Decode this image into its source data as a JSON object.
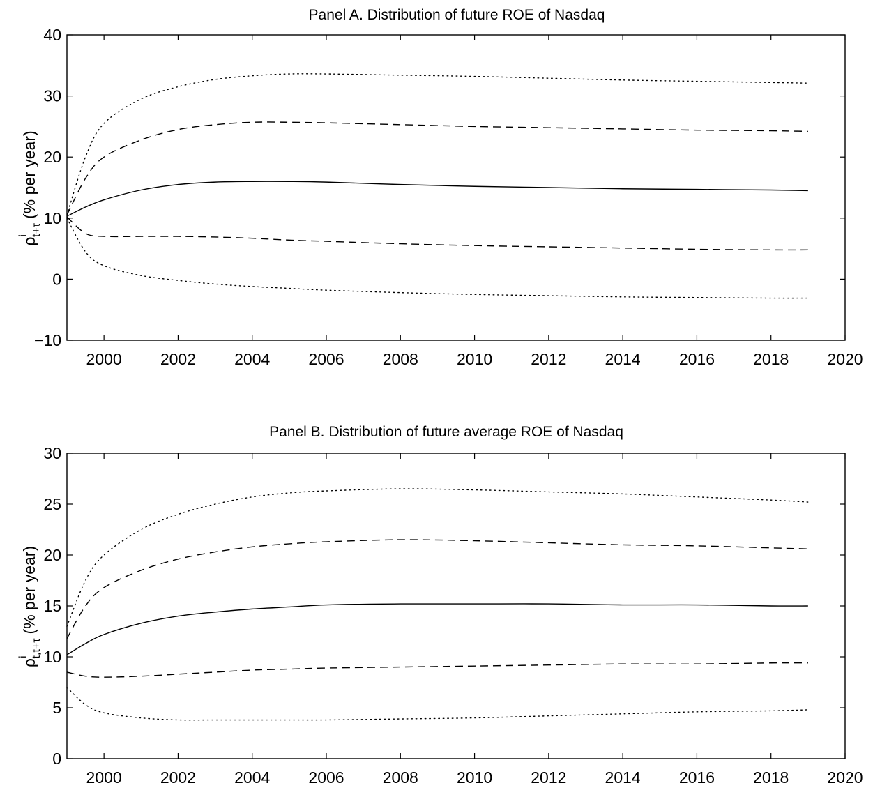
{
  "chart_data": [
    {
      "type": "line",
      "title": "Panel A. Distribution of future ROE of Nasdaq",
      "ylabel": {
        "symbol": "ρ",
        "sup": "i",
        "sub": "t+τ",
        "unit": "(% per year)"
      },
      "xlim": [
        1999,
        2020
      ],
      "ylim": [
        -10,
        40
      ],
      "xticks": [
        2000,
        2002,
        2004,
        2006,
        2008,
        2010,
        2012,
        2014,
        2016,
        2018,
        2020
      ],
      "yticks": [
        -10,
        0,
        10,
        20,
        30,
        40
      ],
      "x": [
        1999,
        1999.5,
        2000,
        2001,
        2002,
        2003,
        2004,
        2005,
        2006,
        2008,
        2010,
        2012,
        2014,
        2016,
        2018,
        2019
      ],
      "series": [
        {
          "style": "dotted",
          "values": [
            10.5,
            20.0,
            25.5,
            29.5,
            31.5,
            32.7,
            33.3,
            33.6,
            33.6,
            33.4,
            33.2,
            32.9,
            32.6,
            32.4,
            32.2,
            32.1
          ]
        },
        {
          "style": "dashed",
          "values": [
            10.5,
            16.5,
            20.0,
            22.8,
            24.5,
            25.3,
            25.7,
            25.7,
            25.6,
            25.3,
            25.0,
            24.8,
            24.6,
            24.4,
            24.3,
            24.2
          ]
        },
        {
          "style": "solid",
          "values": [
            10.3,
            11.8,
            13.0,
            14.6,
            15.5,
            15.9,
            16.0,
            16.0,
            15.9,
            15.5,
            15.2,
            15.0,
            14.8,
            14.7,
            14.6,
            14.5
          ]
        },
        {
          "style": "dashed",
          "values": [
            10.2,
            7.5,
            7.0,
            7.0,
            7.0,
            6.9,
            6.7,
            6.4,
            6.2,
            5.8,
            5.5,
            5.3,
            5.1,
            4.9,
            4.8,
            4.8
          ]
        },
        {
          "style": "dotted",
          "values": [
            10.0,
            4.5,
            2.2,
            0.6,
            -0.2,
            -0.8,
            -1.2,
            -1.5,
            -1.8,
            -2.2,
            -2.5,
            -2.7,
            -2.9,
            -3.0,
            -3.1,
            -3.1
          ]
        }
      ]
    },
    {
      "type": "line",
      "title": "Panel B. Distribution of future average ROE of Nasdaq",
      "ylabel": {
        "symbol": "ρ",
        "sup": "i",
        "sub": "t,t+τ",
        "unit": "(% per year)"
      },
      "xlim": [
        1999,
        2020
      ],
      "ylim": [
        0,
        30
      ],
      "xticks": [
        2000,
        2002,
        2004,
        2006,
        2008,
        2010,
        2012,
        2014,
        2016,
        2018,
        2020
      ],
      "yticks": [
        0,
        5,
        10,
        15,
        20,
        25,
        30
      ],
      "x": [
        1999,
        1999.5,
        2000,
        2001,
        2002,
        2003,
        2004,
        2005,
        2006,
        2008,
        2010,
        2012,
        2014,
        2016,
        2018,
        2019
      ],
      "series": [
        {
          "style": "dotted",
          "values": [
            13.0,
            17.5,
            20.0,
            22.5,
            24.0,
            25.0,
            25.7,
            26.1,
            26.3,
            26.5,
            26.4,
            26.2,
            26.0,
            25.7,
            25.4,
            25.2
          ]
        },
        {
          "style": "dashed",
          "values": [
            11.8,
            15.0,
            16.8,
            18.5,
            19.6,
            20.3,
            20.8,
            21.1,
            21.3,
            21.5,
            21.4,
            21.2,
            21.0,
            20.9,
            20.7,
            20.6
          ]
        },
        {
          "style": "solid",
          "values": [
            10.2,
            11.3,
            12.2,
            13.3,
            14.0,
            14.4,
            14.7,
            14.9,
            15.1,
            15.2,
            15.2,
            15.2,
            15.1,
            15.1,
            15.0,
            15.0
          ]
        },
        {
          "style": "dashed",
          "values": [
            8.5,
            8.1,
            8.0,
            8.1,
            8.3,
            8.5,
            8.7,
            8.8,
            8.9,
            9.0,
            9.1,
            9.2,
            9.3,
            9.3,
            9.4,
            9.4
          ]
        },
        {
          "style": "dotted",
          "values": [
            7.0,
            5.3,
            4.5,
            4.0,
            3.8,
            3.8,
            3.8,
            3.8,
            3.8,
            3.9,
            4.0,
            4.2,
            4.4,
            4.6,
            4.7,
            4.8
          ]
        }
      ]
    }
  ]
}
